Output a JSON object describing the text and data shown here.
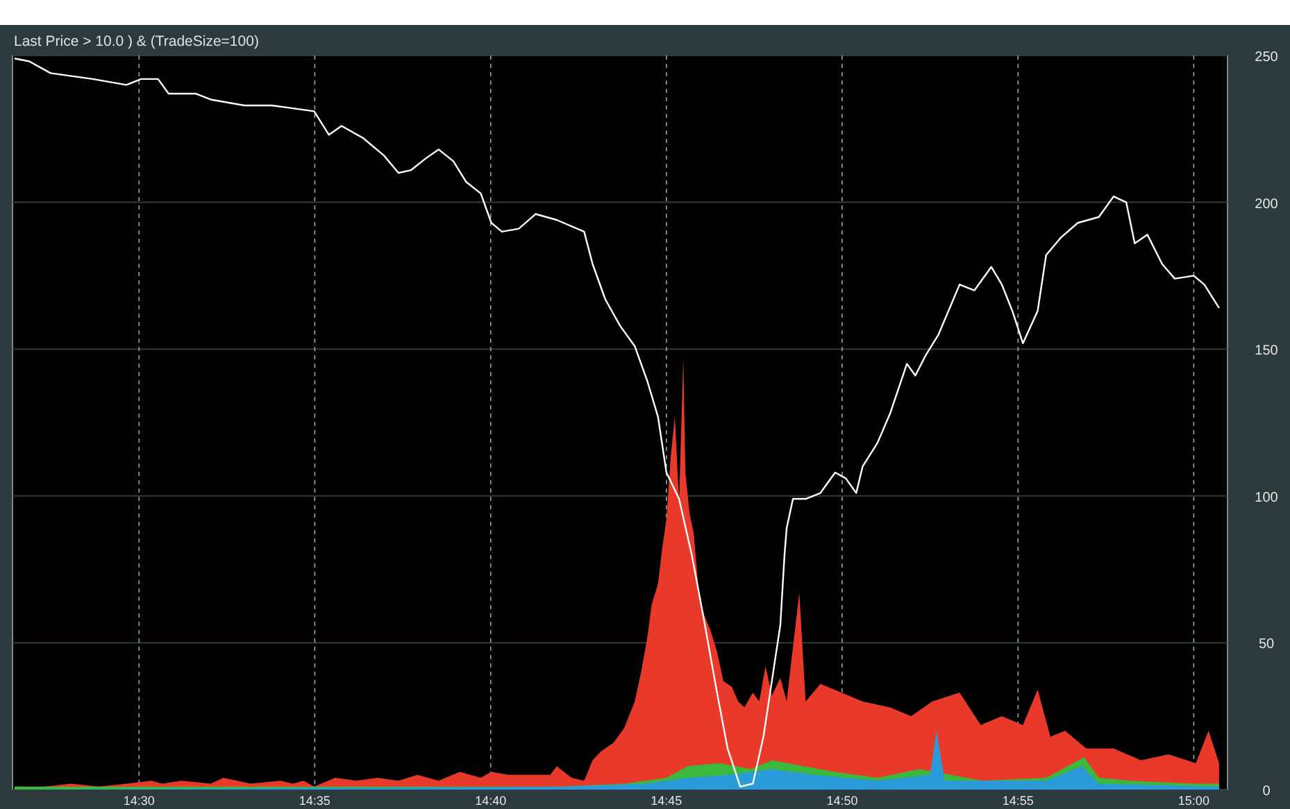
{
  "chart_data": {
    "type": "line",
    "title": "Last Price > 10.0 ) & (TradeSize=100)",
    "xlim": [
      14.44,
      15.016
    ],
    "ylim": [
      0,
      250
    ],
    "xticks": [
      {
        "value": 14.5,
        "label": "14:30"
      },
      {
        "value": 14.5833,
        "label": "14:35"
      },
      {
        "value": 14.6667,
        "label": "14:40"
      },
      {
        "value": 14.75,
        "label": "14:45"
      },
      {
        "value": 14.8333,
        "label": "14:50"
      },
      {
        "value": 14.9167,
        "label": "14:55"
      },
      {
        "value": 15,
        "label": "15:00"
      }
    ],
    "yticks": [
      0,
      50,
      100,
      150,
      200,
      250
    ],
    "grid": true,
    "series": [
      {
        "type": "area",
        "color": "#e8392a",
        "x": [
          14.441,
          14.455,
          14.468,
          14.481,
          14.494,
          14.506,
          14.511,
          14.52,
          14.534,
          14.54,
          14.553,
          14.567,
          14.573,
          14.578,
          14.583,
          14.593,
          14.603,
          14.613,
          14.623,
          14.632,
          14.642,
          14.652,
          14.662,
          14.667,
          14.675,
          14.685,
          14.695,
          14.698,
          14.705,
          14.711,
          14.715,
          14.719,
          14.725,
          14.73,
          14.735,
          14.738,
          14.741,
          14.743,
          14.746,
          14.748,
          14.75,
          14.752,
          14.754,
          14.756,
          14.758,
          14.759,
          14.761,
          14.763,
          14.765,
          14.767,
          14.771,
          14.774,
          14.777,
          14.781,
          14.784,
          14.787,
          14.791,
          14.794,
          14.797,
          14.8,
          14.804,
          14.807,
          14.813,
          14.816,
          14.823,
          14.833,
          14.843,
          14.856,
          14.866,
          14.876,
          14.889,
          14.899,
          14.909,
          14.919,
          14.926,
          14.932,
          14.939,
          14.949,
          14.962,
          14.975,
          14.988,
          15.001,
          15.007,
          15.012
        ],
        "values": [
          1,
          1,
          2,
          1,
          2,
          3,
          2,
          3,
          2,
          4,
          2,
          3,
          2,
          3,
          1,
          4,
          3,
          4,
          3,
          5,
          3,
          6,
          4,
          6,
          5,
          5,
          5,
          8,
          4,
          3,
          10,
          13,
          16,
          21,
          30,
          40,
          52,
          63,
          70,
          82,
          92,
          113,
          127,
          98,
          147,
          108,
          94,
          87,
          70,
          61,
          54,
          47,
          37,
          35,
          30,
          28,
          33,
          30,
          42,
          32,
          38,
          30,
          67,
          30,
          36,
          33,
          30,
          28,
          25,
          30,
          33,
          22,
          25,
          22,
          34,
          18,
          20,
          14,
          14,
          10,
          12,
          9,
          20,
          9
        ]
      },
      {
        "type": "area",
        "color": "#3cb83c",
        "x": [
          14.441,
          14.6,
          14.7,
          14.73,
          14.75,
          14.76,
          14.775,
          14.79,
          14.8,
          14.815,
          14.83,
          14.85,
          14.87,
          14.9,
          14.93,
          14.948,
          14.955,
          14.97,
          15,
          15.012
        ],
        "values": [
          1,
          1,
          1,
          2,
          4,
          8,
          9,
          7,
          10,
          8,
          6,
          4,
          7,
          3,
          4,
          11,
          4,
          3,
          2,
          2
        ]
      },
      {
        "type": "area",
        "color": "#2a9ad8",
        "x": [
          14.441,
          14.7,
          14.74,
          14.76,
          14.78,
          14.8,
          14.82,
          14.85,
          14.875,
          14.878,
          14.882,
          14.93,
          14.947,
          14.955,
          15.012
        ],
        "values": [
          0,
          1,
          2,
          4,
          5,
          7,
          5,
          3,
          5,
          20,
          3,
          3,
          8,
          2,
          1
        ]
      },
      {
        "color": "#ffffff",
        "x": [
          14.441,
          14.448,
          14.458,
          14.468,
          14.478,
          14.494,
          14.501,
          14.509,
          14.514,
          14.527,
          14.534,
          14.55,
          14.563,
          14.573,
          14.583,
          14.59,
          14.596,
          14.606,
          14.616,
          14.623,
          14.629,
          14.636,
          14.642,
          14.649,
          14.655,
          14.662,
          14.667,
          14.672,
          14.68,
          14.688,
          14.698,
          14.711,
          14.715,
          14.721,
          14.728,
          14.735,
          14.741,
          14.746,
          14.75,
          14.756,
          14.762,
          14.767,
          14.774,
          14.779,
          14.785,
          14.791,
          14.796,
          14.8,
          14.804,
          14.806,
          14.807,
          14.81,
          14.816,
          14.823,
          14.83,
          14.835,
          14.84,
          14.843,
          14.85,
          14.856,
          14.864,
          14.868,
          14.873,
          14.879,
          14.889,
          14.896,
          14.904,
          14.909,
          14.914,
          14.919,
          14.926,
          14.93,
          14.937,
          14.945,
          14.955,
          14.962,
          14.968,
          14.972,
          14.978,
          14.985,
          14.991,
          15,
          15.005,
          15.012
        ],
        "values": [
          249,
          248,
          244,
          243,
          242,
          240,
          242,
          242,
          237,
          237,
          235,
          233,
          233,
          232,
          231,
          223,
          226,
          222,
          216,
          210,
          211,
          215,
          218,
          214,
          207,
          203,
          193,
          190,
          191,
          196,
          194,
          190,
          179,
          167,
          158,
          151,
          139,
          127,
          108,
          99,
          80,
          61,
          33,
          14,
          1,
          2,
          18,
          37,
          56,
          80,
          89,
          99,
          99,
          101,
          108,
          106,
          101,
          110,
          118,
          128,
          145,
          141,
          148,
          155,
          172,
          170,
          178,
          172,
          163,
          152,
          163,
          182,
          188,
          193,
          195,
          202,
          200,
          186,
          189,
          179,
          174,
          175,
          172,
          164
        ]
      }
    ]
  }
}
